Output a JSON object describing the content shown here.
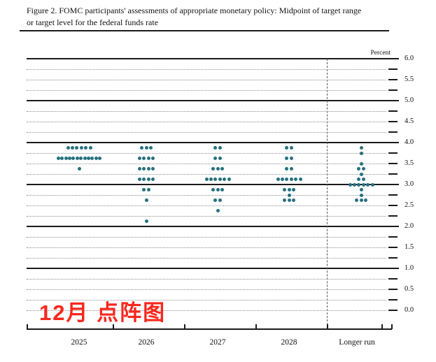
{
  "figure": {
    "title_line1": "Figure 2. FOMC participants' assessments of appropriate monetary policy: Midpoint of target range",
    "title_line2": "or target level for the federal funds rate"
  },
  "annotation": {
    "text": "12月 点阵图",
    "color": "#f8281e"
  },
  "chart_data": {
    "type": "scatter",
    "title": "FOMC participants' assessments of appropriate monetary policy: Midpoint of target range or target level for the federal funds rate",
    "xlabel": "",
    "ylabel": "Percent",
    "ylim": [
      0.0,
      6.0
    ],
    "y_tick_step_labels": 0.5,
    "gridlines": "solid at whole percents, dotted at quarter percents",
    "legend": "none",
    "separator": "vertical dashed line before Longer run column",
    "dot_color": "#26707e",
    "y_ticks": [
      "6.0",
      "5.5",
      "5.0",
      "4.5",
      "4.0",
      "3.5",
      "3.0",
      "2.5",
      "2.0",
      "1.5",
      "1.0",
      "0.5",
      "0.0"
    ],
    "categories": [
      "2025",
      "2026",
      "2027",
      "2028",
      "Longer run"
    ],
    "columns": [
      {
        "label": "2025",
        "dots": [
          {
            "rate": 3.875,
            "count": 6
          },
          {
            "rate": 3.625,
            "count": 12
          },
          {
            "rate": 3.375,
            "count": 1
          }
        ]
      },
      {
        "label": "2026",
        "dots": [
          {
            "rate": 3.875,
            "count": 3
          },
          {
            "rate": 3.625,
            "count": 4
          },
          {
            "rate": 3.375,
            "count": 4
          },
          {
            "rate": 3.125,
            "count": 4
          },
          {
            "rate": 2.875,
            "count": 2
          },
          {
            "rate": 2.625,
            "count": 1
          },
          {
            "rate": 2.125,
            "count": 1
          }
        ]
      },
      {
        "label": "2027",
        "dots": [
          {
            "rate": 3.875,
            "count": 2
          },
          {
            "rate": 3.625,
            "count": 2
          },
          {
            "rate": 3.375,
            "count": 3
          },
          {
            "rate": 3.125,
            "count": 6
          },
          {
            "rate": 2.875,
            "count": 3
          },
          {
            "rate": 2.625,
            "count": 2
          },
          {
            "rate": 2.375,
            "count": 1
          }
        ]
      },
      {
        "label": "2028",
        "dots": [
          {
            "rate": 3.875,
            "count": 2
          },
          {
            "rate": 3.625,
            "count": 2
          },
          {
            "rate": 3.375,
            "count": 2
          },
          {
            "rate": 3.125,
            "count": 6
          },
          {
            "rate": 2.875,
            "count": 3
          },
          {
            "rate": 2.75,
            "count": 1
          },
          {
            "rate": 2.625,
            "count": 3
          }
        ]
      },
      {
        "label": "Longer run",
        "dots": [
          {
            "rate": 3.875,
            "count": 1
          },
          {
            "rate": 3.75,
            "count": 1
          },
          {
            "rate": 3.5,
            "count": 1
          },
          {
            "rate": 3.375,
            "count": 2
          },
          {
            "rate": 3.25,
            "count": 1
          },
          {
            "rate": 3.125,
            "count": 2
          },
          {
            "rate": 3.0,
            "count": 6
          },
          {
            "rate": 2.875,
            "count": 1
          },
          {
            "rate": 2.75,
            "count": 1
          },
          {
            "rate": 2.625,
            "count": 3
          }
        ]
      }
    ]
  }
}
